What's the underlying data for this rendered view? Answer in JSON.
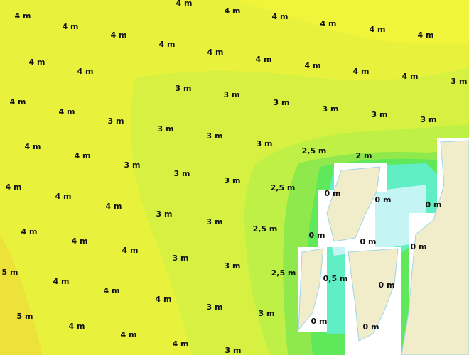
{
  "labels": [
    "4 m",
    "4 m",
    "4 m",
    "4 m",
    "4 m",
    "4 m",
    "4 m",
    "4 m",
    "4 m",
    "4 m",
    "4 m",
    "4 m",
    "4 m",
    "4 m",
    "4 m",
    "4 m",
    "4 m",
    "3 m",
    "4 m",
    "4 m",
    "3 m",
    "3 m",
    "3 m",
    "3 m",
    "3 m",
    "3 m",
    "3 m",
    "3 m",
    "3 m",
    "3 m",
    "2,5 m",
    "2 m",
    "4 m",
    "4 m",
    "3 m",
    "3 m",
    "3 m",
    "2,5 m",
    "0 m",
    "0 m",
    "0 m",
    "4 m",
    "4 m",
    "4 m",
    "3 m",
    "3 m",
    "2,5 m",
    "0 m",
    "0 m",
    "0 m",
    "4 m",
    "4 m",
    "4 m",
    "3 m",
    "3 m",
    "2,5 m",
    "0,5 m",
    "0 m",
    "5 m",
    "4 m",
    "4 m",
    "4 m",
    "3 m",
    "3 m",
    "0 m",
    "0 m",
    "5 m",
    "4 m",
    "4 m",
    "4 m",
    "3 m"
  ]
}
